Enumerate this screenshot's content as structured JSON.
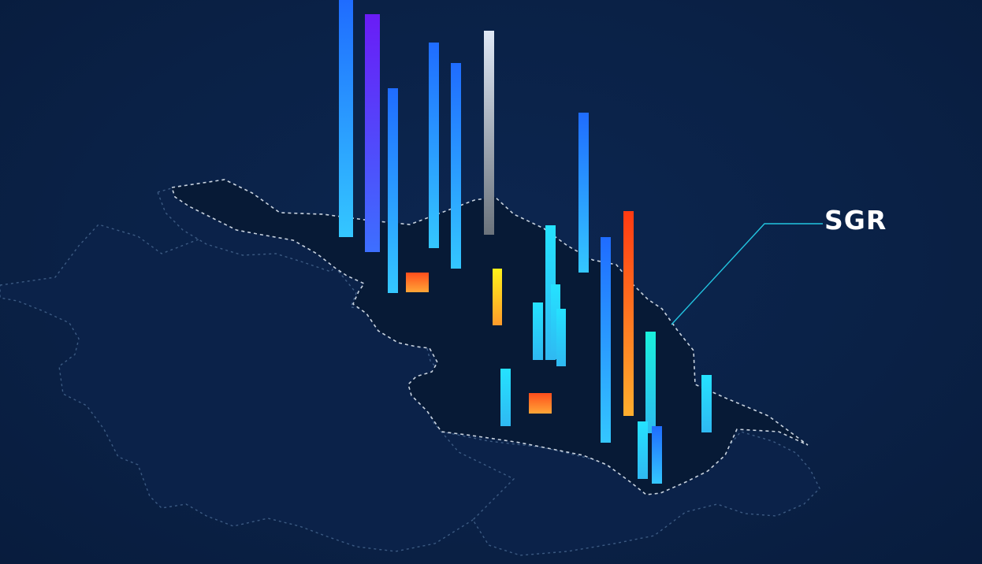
{
  "map": {
    "highlighted_region_label": "SGR"
  },
  "colors": {
    "background": "#0a2146",
    "region_fill": "#071a36",
    "region_border": "#c9d3df",
    "outer_border": "#3c5a82",
    "callout_line": "#22c4e0",
    "label": "#ffffff"
  },
  "bars": [
    {
      "id": "bar-1",
      "color": "blue",
      "relative_height": 1.0
    },
    {
      "id": "bar-2",
      "color": "violet",
      "relative_height": 0.99
    },
    {
      "id": "bar-3",
      "color": "blue",
      "relative_height": 0.86
    },
    {
      "id": "bar-4",
      "color": "blue",
      "relative_height": 0.86
    },
    {
      "id": "bar-5",
      "color": "blue",
      "relative_height": 0.86
    },
    {
      "id": "bar-6",
      "color": "silver",
      "relative_height": 0.85
    },
    {
      "id": "bar-7",
      "color": "orange",
      "relative_height": 0.08
    },
    {
      "id": "bar-8",
      "color": "yellow",
      "relative_height": 0.24
    },
    {
      "id": "bar-9",
      "color": "cyan",
      "relative_height": 0.57
    },
    {
      "id": "bar-10",
      "color": "cyan",
      "relative_height": 0.31
    },
    {
      "id": "bar-11",
      "color": "cyan",
      "relative_height": 0.24
    },
    {
      "id": "bar-12",
      "color": "cyan",
      "relative_height": 0.24
    },
    {
      "id": "bar-13",
      "color": "blue",
      "relative_height": 0.67
    },
    {
      "id": "bar-14",
      "color": "blue",
      "relative_height": 0.86
    },
    {
      "id": "bar-15",
      "color": "red",
      "relative_height": 0.86
    },
    {
      "id": "bar-16",
      "color": "cyan",
      "relative_height": 0.24
    },
    {
      "id": "bar-17",
      "color": "orange",
      "relative_height": 0.08
    },
    {
      "id": "bar-18",
      "color": "teal",
      "relative_height": 0.42
    },
    {
      "id": "bar-19",
      "color": "cyan",
      "relative_height": 0.24
    },
    {
      "id": "bar-20",
      "color": "cyan",
      "relative_height": 0.24
    },
    {
      "id": "bar-21",
      "color": "blue",
      "relative_height": 0.24
    }
  ]
}
